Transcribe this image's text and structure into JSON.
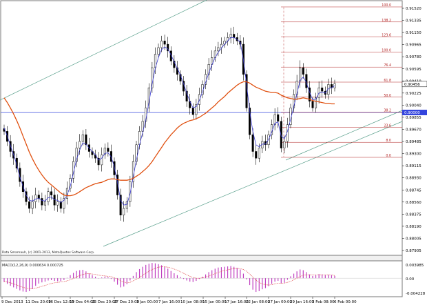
{
  "chart_data": {
    "type": "candlestick",
    "watermark": "Rata Smarnauh, (c) 2001-2013, MetaQuotes Software Corp.",
    "ylim": [
      0.879,
      0.917
    ],
    "y_ticks": [
      "0.91520",
      "0.91335",
      "0.91150",
      "0.90965",
      "0.90780",
      "0.90595",
      "0.90410",
      "0.90225",
      "0.90040",
      "0.89855",
      "0.89670",
      "0.89485",
      "0.89300",
      "0.89115",
      "0.88930",
      "0.88745",
      "0.88560",
      "0.88375",
      "0.88190",
      "0.88005",
      "0.87905"
    ],
    "x_ticks": [
      "9 Dec 2013",
      "11 Dec 20:00",
      "16 Dec 12:00",
      "19 Dec 04:00",
      "23 Dec 20:00",
      "27 Dec 20:00",
      "3 Jan 00:00",
      "7 Jan 16:00",
      "10 Jan 08:00",
      "15 Jan 00:00",
      "17 Jan 16:00",
      "22 Jan 08:00",
      "27 Jan 00:00",
      "29 Jan 16:00",
      "3 Feb 08:00",
      "6 Feb 00:00"
    ],
    "current_price": "0.90456",
    "reference_price": "0.90000",
    "fib_levels": [
      "100.0",
      "138.2",
      "123.6",
      "100.0",
      "76.4",
      "61.8",
      "50.0",
      "38.2",
      "23.6",
      "8.0",
      "0.0"
    ],
    "indicator": {
      "label": "MACD(12,26,9) 0.000634 0.000725",
      "y_ticks": [
        "0.003985",
        "0.00",
        "-0.004228"
      ]
    },
    "close": [
      0.8975,
      0.896,
      0.8945,
      0.8935,
      0.892,
      0.89,
      0.8885,
      0.887,
      0.886,
      0.887,
      0.888,
      0.8875,
      0.8865,
      0.887,
      0.8885,
      0.888,
      0.8865,
      0.887,
      0.886,
      0.8875,
      0.889,
      0.8905,
      0.893,
      0.895,
      0.896,
      0.897,
      0.8955,
      0.8945,
      0.894,
      0.8935,
      0.8925,
      0.894,
      0.895,
      0.8945,
      0.893,
      0.891,
      0.888,
      0.885,
      0.886,
      0.887,
      0.89,
      0.893,
      0.8955,
      0.8975,
      0.899,
      0.901,
      0.904,
      0.907,
      0.909,
      0.91,
      0.911,
      0.9105,
      0.9095,
      0.908,
      0.907,
      0.906,
      0.905,
      0.9035,
      0.902,
      0.901,
      0.9,
      0.9015,
      0.903,
      0.9045,
      0.906,
      0.9075,
      0.9085,
      0.9095,
      0.91,
      0.9105,
      0.911,
      0.9115,
      0.912,
      0.9115,
      0.911,
      0.9105,
      0.906,
      0.901,
      0.897,
      0.8945,
      0.8935,
      0.895,
      0.896,
      0.8955,
      0.897,
      0.8985,
      0.9,
      0.899,
      0.895,
      0.896,
      0.8985,
      0.901,
      0.903,
      0.905,
      0.907,
      0.906,
      0.904,
      0.902,
      0.901,
      0.9025,
      0.904,
      0.9035,
      0.903,
      0.9045,
      0.904,
      0.9046
    ],
    "ma_fast": [
      0.898,
      0.8968,
      0.8954,
      0.894,
      0.8925,
      0.8907,
      0.8893,
      0.888,
      0.8872,
      0.8871,
      0.8874,
      0.8875,
      0.8872,
      0.8871,
      0.8876,
      0.8877,
      0.8873,
      0.8872,
      0.8869,
      0.8872,
      0.888,
      0.8893,
      0.8913,
      0.8933,
      0.8947,
      0.8958,
      0.8956,
      0.895,
      0.8945,
      0.894,
      0.8932,
      0.8935,
      0.8942,
      0.8943,
      0.8937,
      0.8922,
      0.8899,
      0.8872,
      0.8865,
      0.8866,
      0.8882,
      0.8907,
      0.8932,
      0.8955,
      0.8973,
      0.8992,
      0.9018,
      0.9046,
      0.9069,
      0.9085,
      0.9097,
      0.9101,
      0.9098,
      0.9089,
      0.9079,
      0.9069,
      0.9059,
      0.9046,
      0.9032,
      0.902,
      0.901,
      0.9012,
      0.9021,
      0.9034,
      0.9048,
      0.9062,
      0.9074,
      0.9085,
      0.9093,
      0.9099,
      0.9105,
      0.911,
      0.9115,
      0.9115,
      0.9112,
      0.9108,
      0.9082,
      0.9045,
      0.9005,
      0.8975,
      0.8955,
      0.8952,
      0.8956,
      0.8956,
      0.8963,
      0.8974,
      0.8987,
      0.8989,
      0.8968,
      0.8964,
      0.8975,
      0.8993,
      0.9012,
      0.9031,
      0.9051,
      0.9056,
      0.9048,
      0.9034,
      0.9022,
      0.9023,
      0.9032,
      0.9034,
      0.9032,
      0.9039,
      0.904,
      0.9043
    ],
    "ma_slow": [
      0.9025,
      0.9018,
      0.901,
      0.9001,
      0.8991,
      0.898,
      0.8968,
      0.8956,
      0.8944,
      0.8934,
      0.8925,
      0.8917,
      0.891,
      0.8904,
      0.8899,
      0.8895,
      0.8891,
      0.8887,
      0.8883,
      0.888,
      0.8879,
      0.8879,
      0.888,
      0.8882,
      0.8885,
      0.8888,
      0.8891,
      0.8893,
      0.8895,
      0.8897,
      0.8898,
      0.8899,
      0.8901,
      0.8903,
      0.8904,
      0.8904,
      0.8903,
      0.8902,
      0.8902,
      0.8902,
      0.8903,
      0.8905,
      0.8908,
      0.8911,
      0.8915,
      0.8919,
      0.8924,
      0.893,
      0.8937,
      0.8944,
      0.8951,
      0.8958,
      0.8964,
      0.897,
      0.8975,
      0.898,
      0.8984,
      0.8987,
      0.8989,
      0.8991,
      0.8992,
      0.8994,
      0.8996,
      0.8999,
      0.9002,
      0.9006,
      0.901,
      0.9014,
      0.9019,
      0.9023,
      0.9027,
      0.9032,
      0.9036,
      0.904,
      0.9044,
      0.9047,
      0.9049,
      0.9049,
      0.9047,
      0.9044,
      0.9041,
      0.9039,
      0.9037,
      0.9035,
      0.9034,
      0.9033,
      0.9033,
      0.9032,
      0.9029,
      0.9027,
      0.9025,
      0.9024,
      0.9023,
      0.9023,
      0.9024,
      0.9025,
      0.9024,
      0.9023,
      0.9021,
      0.902,
      0.9019,
      0.9018,
      0.9017,
      0.9017,
      0.9016,
      0.9016
    ],
    "macd": [
      -0.001,
      -0.0015,
      -0.002,
      -0.0024,
      -0.0028,
      -0.0032,
      -0.0035,
      -0.0036,
      -0.0034,
      -0.0028,
      -0.002,
      -0.0014,
      -0.0011,
      -0.0009,
      -0.0006,
      -0.0005,
      -0.0007,
      -0.0008,
      -0.0008,
      -0.0005,
      0.0001,
      0.0008,
      0.0014,
      0.0019,
      0.0021,
      0.0022,
      0.0018,
      0.0013,
      0.0008,
      0.0004,
      0.0,
      0.0002,
      0.0004,
      0.0003,
      -0.0002,
      -0.0009,
      -0.0017,
      -0.0024,
      -0.0022,
      -0.0016,
      -0.0006,
      0.0006,
      0.0016,
      0.0024,
      0.003,
      0.0035,
      0.0038,
      0.004,
      0.0039,
      0.0037,
      0.0034,
      0.003,
      0.0025,
      0.0019,
      0.0013,
      0.0008,
      0.0003,
      -0.0002,
      -0.0006,
      -0.0009,
      -0.001,
      -0.0007,
      -0.0002,
      0.0004,
      0.001,
      0.0016,
      0.0021,
      0.0025,
      0.0028,
      0.0029,
      0.003,
      0.0031,
      0.0032,
      0.003,
      0.0027,
      0.0023,
      0.0012,
      -0.0003,
      -0.0018,
      -0.003,
      -0.0036,
      -0.0034,
      -0.0029,
      -0.0026,
      -0.0021,
      -0.0015,
      -0.0009,
      -0.0007,
      -0.0014,
      -0.0012,
      -0.0004,
      0.0005,
      0.0012,
      0.0018,
      0.0023,
      0.0021,
      0.0016,
      0.001,
      0.0006,
      0.0008,
      0.0011,
      0.001,
      0.0008,
      0.0009,
      0.0008,
      0.0006
    ],
    "macd_signal": [
      -0.0008,
      -0.001,
      -0.0012,
      -0.0015,
      -0.0018,
      -0.0021,
      -0.0024,
      -0.0026,
      -0.0028,
      -0.0028,
      -0.0026,
      -0.0024,
      -0.0021,
      -0.0019,
      -0.0016,
      -0.0014,
      -0.0012,
      -0.0011,
      -0.001,
      -0.0009,
      -0.0007,
      -0.0004,
      -0.0001,
      0.0003,
      0.0007,
      0.001,
      0.0012,
      0.0012,
      0.0011,
      0.001,
      0.0008,
      0.0007,
      0.0006,
      0.0005,
      0.0004,
      0.0001,
      -0.0002,
      -0.0007,
      -0.001,
      -0.0012,
      -0.0011,
      -0.0007,
      -0.0003,
      0.0002,
      0.0008,
      0.0013,
      0.0018,
      0.0023,
      0.0026,
      0.0029,
      0.003,
      0.003,
      0.0029,
      0.0027,
      0.0024,
      0.0021,
      0.0017,
      0.0013,
      0.0009,
      0.0005,
      0.0002,
      0.0,
      0.0,
      0.0001,
      0.0003,
      0.0006,
      0.0009,
      0.0012,
      0.0015,
      0.0018,
      0.002,
      0.0022,
      0.0024,
      0.0025,
      0.0026,
      0.0025,
      0.0023,
      0.0018,
      0.0011,
      0.0003,
      -0.0005,
      -0.0011,
      -0.0015,
      -0.0017,
      -0.0018,
      -0.0017,
      -0.0015,
      -0.0013,
      -0.0013,
      -0.0013,
      -0.0011,
      -0.0008,
      -0.0004,
      0.0,
      0.0004,
      0.0008,
      0.0009,
      0.0009,
      0.0009,
      0.0009,
      0.0009,
      0.0009,
      0.0009,
      0.0009,
      0.0009,
      0.0007
    ]
  }
}
